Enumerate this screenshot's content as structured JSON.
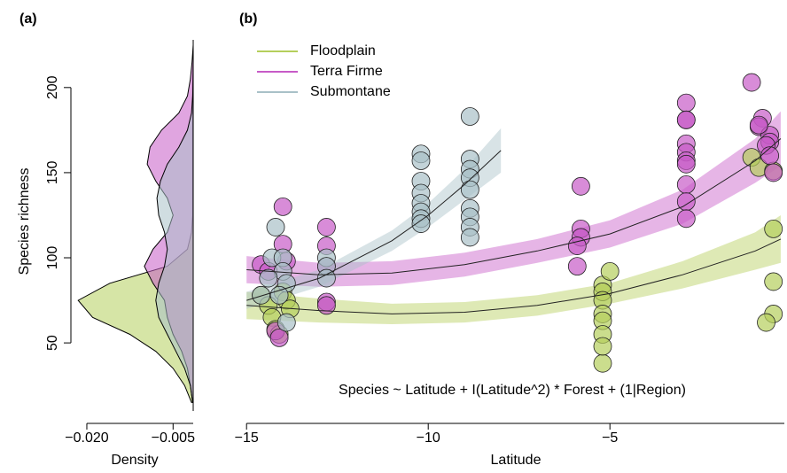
{
  "chart_data": [
    {
      "type": "area",
      "label": "(a)",
      "ylabel": "Species richness",
      "xlabel": "Density",
      "xlim": [
        -0.022,
        -0.0015
      ],
      "ylim": [
        10,
        228
      ],
      "xticks": [
        {
          "value": -0.02,
          "label": "−0.020"
        },
        {
          "value": -0.005,
          "label": "−0.005"
        }
      ],
      "yticks": [
        50,
        100,
        150,
        200
      ],
      "y": [
        15,
        25,
        35,
        45,
        55,
        65,
        75,
        85,
        95,
        105,
        115,
        125,
        135,
        145,
        155,
        165,
        175,
        185,
        195,
        205,
        215,
        225
      ],
      "series": [
        {
          "name": "Floodplain",
          "color": "#b5cf5c",
          "values": [
            -0.0018,
            -0.003,
            -0.005,
            -0.008,
            -0.0125,
            -0.019,
            -0.0215,
            -0.016,
            -0.006,
            -0.0025,
            -0.0018,
            -0.0016,
            -0.0016,
            -0.0016,
            -0.0016,
            -0.0016,
            -0.0016,
            -0.0016,
            -0.0016,
            -0.0016,
            -0.0015,
            -0.0015
          ]
        },
        {
          "name": "Terra Firme",
          "color": "#c75bc7",
          "values": [
            -0.0016,
            -0.002,
            -0.0025,
            -0.0035,
            -0.005,
            -0.006,
            -0.0065,
            -0.0085,
            -0.01,
            -0.0085,
            -0.006,
            -0.005,
            -0.006,
            -0.008,
            -0.0095,
            -0.009,
            -0.007,
            -0.004,
            -0.0025,
            -0.002,
            -0.0017,
            -0.0015
          ]
        },
        {
          "name": "Submontane",
          "color": "#a9c1c8",
          "values": [
            -0.0016,
            -0.002,
            -0.003,
            -0.0045,
            -0.006,
            -0.0075,
            -0.008,
            -0.0075,
            -0.0065,
            -0.006,
            -0.0065,
            -0.0075,
            -0.0078,
            -0.0072,
            -0.006,
            -0.004,
            -0.0025,
            -0.0018,
            -0.0016,
            -0.0015,
            -0.0015,
            -0.0015
          ]
        }
      ]
    },
    {
      "type": "scatter",
      "label": "(b)",
      "xlabel": "Latitude",
      "annotation": "Species ~ Latitude + I(Latitude^2) * Forest + (1|Region)",
      "xlim": [
        -15.2,
        -0.2
      ],
      "ylim": [
        10,
        228
      ],
      "xticks": [
        {
          "value": -15,
          "label": "−15"
        },
        {
          "value": -10,
          "label": "−10"
        },
        {
          "value": -5,
          "label": "−5"
        }
      ],
      "legend": "top-left",
      "series": [
        {
          "name": "Floodplain",
          "color": "#b5cf5c",
          "x": [
            -14.6,
            -14.4,
            -14.3,
            -14.2,
            -14.1,
            -14.0,
            -13.9,
            -13.8,
            -5.2,
            -5.2,
            -5.2,
            -5.2,
            -5.2,
            -5.2,
            -5.2,
            -5.2,
            -5.0,
            -1.1,
            -0.9,
            -0.5,
            -0.5,
            -0.5,
            -0.5,
            -0.7
          ],
          "values": [
            78,
            72,
            65,
            58,
            55,
            80,
            75,
            70,
            84,
            80,
            75,
            67,
            63,
            55,
            38,
            48,
            92,
            159,
            153,
            117,
            151,
            86,
            67,
            62
          ],
          "fit": {
            "x": [
              -15,
              -13,
              -11,
              -9,
              -7,
              -5,
              -3,
              -1,
              -0.3
            ],
            "values": [
              72,
              69,
              67,
              68,
              72,
              79,
              90,
              104,
              111
            ],
            "lower": [
              64,
              62,
              61,
              62,
              66,
              73,
              82,
              93,
              97
            ],
            "upper": [
              80,
              76,
              73,
              74,
              78,
              85,
              98,
              115,
              125
            ]
          }
        },
        {
          "name": "Terra Firme",
          "color": "#c75bc7",
          "x": [
            -14.6,
            -14.4,
            -14.2,
            -14.1,
            -14.0,
            -14.0,
            -13.9,
            -12.8,
            -12.8,
            -12.8,
            -12.8,
            -12.8,
            -5.8,
            -5.8,
            -5.8,
            -5.9,
            -5.9,
            -2.9,
            -2.9,
            -2.9,
            -2.9,
            -2.9,
            -2.9,
            -2.9,
            -2.9,
            -2.9,
            -2.9,
            -1.1,
            -0.8,
            -0.9,
            -0.6,
            -0.6,
            -0.7,
            -0.6,
            -0.5,
            -0.9
          ],
          "values": [
            96,
            92,
            57,
            53,
            130,
            108,
            98,
            118,
            107,
            95,
            74,
            72,
            142,
            117,
            112,
            107,
            95,
            191,
            181,
            181,
            167,
            162,
            157,
            155,
            143,
            133,
            123,
            203,
            182,
            177,
            172,
            168,
            166,
            160,
            150,
            178
          ],
          "fit": {
            "x": [
              -15,
              -13,
              -11,
              -9,
              -7,
              -5,
              -3,
              -1,
              -0.3
            ],
            "values": [
              93,
              90,
              91,
              96,
              104,
              114,
              130,
              157,
              170
            ],
            "lower": [
              85,
              83,
              84,
              89,
              97,
              106,
              120,
              144,
              154
            ],
            "upper": [
              101,
              97,
              98,
              103,
              111,
              122,
              140,
              170,
              186
            ]
          }
        },
        {
          "name": "Submontane",
          "color": "#a9c1c8",
          "x": [
            -14.2,
            -14.3,
            -14.0,
            -14.0,
            -13.9,
            -14.1,
            -13.9,
            -14.4,
            -14.6,
            -12.8,
            -12.8,
            -12.8,
            -10.2,
            -10.2,
            -10.2,
            -10.2,
            -10.2,
            -10.2,
            -10.2,
            -10.2,
            -8.85,
            -8.85,
            -8.85,
            -8.85,
            -8.85,
            -8.85,
            -8.85,
            -8.85,
            -8.85
          ],
          "values": [
            118,
            100,
            100,
            92,
            85,
            78,
            62,
            88,
            78,
            100,
            95,
            88,
            161,
            157,
            145,
            138,
            132,
            127,
            123,
            120,
            183,
            158,
            152,
            147,
            140,
            129,
            124,
            118,
            112
          ],
          "fit": {
            "x": [
              -15,
              -13,
              -11,
              -10,
              -9,
              -8
            ],
            "values": [
              75,
              88,
              110,
              125,
              143,
              163
            ],
            "lower": [
              70,
              83,
              104,
              118,
              134,
              150
            ],
            "upper": [
              80,
              93,
              116,
              132,
              152,
              176
            ]
          }
        }
      ]
    }
  ]
}
